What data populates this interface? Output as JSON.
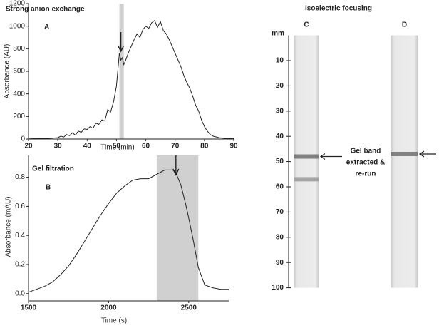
{
  "chart_data": [
    {
      "type": "line",
      "title": "Strong anion exchange",
      "panel": "A",
      "x_label": "Time (min)",
      "y_label": "Absorbance (AU)",
      "xlim": [
        20,
        90
      ],
      "xticks": [
        20,
        30,
        40,
        50,
        60,
        70,
        80,
        90
      ],
      "ylim": [
        0,
        1200
      ],
      "yticks": [
        0,
        200,
        400,
        600,
        800,
        1000,
        1200
      ],
      "highlight": [
        51,
        52.5
      ],
      "arrow_x": 51.5,
      "color": "#222",
      "x": [
        20,
        22,
        24,
        26,
        28,
        30,
        31,
        32,
        33,
        34,
        35,
        36,
        37,
        38,
        39,
        40,
        41,
        42,
        43,
        44,
        45,
        46,
        47,
        48,
        49,
        50,
        50.5,
        51,
        51.5,
        52,
        52.5,
        53,
        54,
        55,
        56,
        57,
        58,
        59,
        60,
        61,
        62,
        63,
        64,
        65,
        66,
        67,
        68,
        69,
        70,
        71,
        72,
        73,
        74,
        75,
        76,
        77,
        78,
        79,
        80,
        81,
        82,
        83,
        85,
        87,
        90
      ],
      "values": [
        2,
        3,
        4,
        5,
        8,
        12,
        25,
        18,
        40,
        30,
        55,
        35,
        70,
        60,
        90,
        85,
        110,
        95,
        140,
        130,
        170,
        160,
        260,
        240,
        330,
        470,
        620,
        760,
        700,
        720,
        660,
        690,
        760,
        820,
        880,
        930,
        900,
        970,
        1000,
        980,
        1030,
        1050,
        990,
        1040,
        960,
        930,
        880,
        820,
        760,
        700,
        640,
        560,
        500,
        450,
        380,
        300,
        250,
        170,
        110,
        70,
        40,
        25,
        12,
        6,
        3
      ]
    },
    {
      "type": "line",
      "title": "Gel filtration",
      "panel": "B",
      "x_label": "Time (s)",
      "y_label": "Absorbance (mAU)",
      "xlim": [
        1500,
        2750
      ],
      "xticks": [
        1500,
        2000,
        2500
      ],
      "ylim": [
        -0.05,
        0.95
      ],
      "yticks": [
        {
          "value": 0,
          "label": "0.0"
        },
        0.2,
        0.4,
        0.6,
        0.8
      ],
      "highlight": [
        2300,
        2560
      ],
      "arrow_x": 2420,
      "color": "#222",
      "x": [
        1500,
        1550,
        1600,
        1650,
        1700,
        1750,
        1800,
        1850,
        1900,
        1950,
        2000,
        2050,
        2100,
        2150,
        2200,
        2250,
        2300,
        2350,
        2400,
        2420,
        2450,
        2480,
        2500,
        2530,
        2560,
        2600,
        2650,
        2700,
        2750
      ],
      "values": [
        0.01,
        0.03,
        0.05,
        0.08,
        0.13,
        0.19,
        0.27,
        0.36,
        0.45,
        0.54,
        0.62,
        0.69,
        0.74,
        0.78,
        0.79,
        0.79,
        0.82,
        0.85,
        0.85,
        0.83,
        0.75,
        0.62,
        0.52,
        0.36,
        0.18,
        0.06,
        0.04,
        0.03,
        0.03
      ]
    }
  ],
  "gel": {
    "title": "Isoelectric focusing",
    "unit": "mm",
    "ticks": [
      10,
      20,
      30,
      40,
      50,
      60,
      70,
      80,
      90,
      100
    ],
    "lanes": [
      {
        "label": "C",
        "bands": [
          48,
          57
        ]
      },
      {
        "label": "D",
        "bands": [
          47
        ]
      }
    ],
    "annotation": [
      "Gel  band",
      "extracted &",
      "re-run"
    ]
  }
}
